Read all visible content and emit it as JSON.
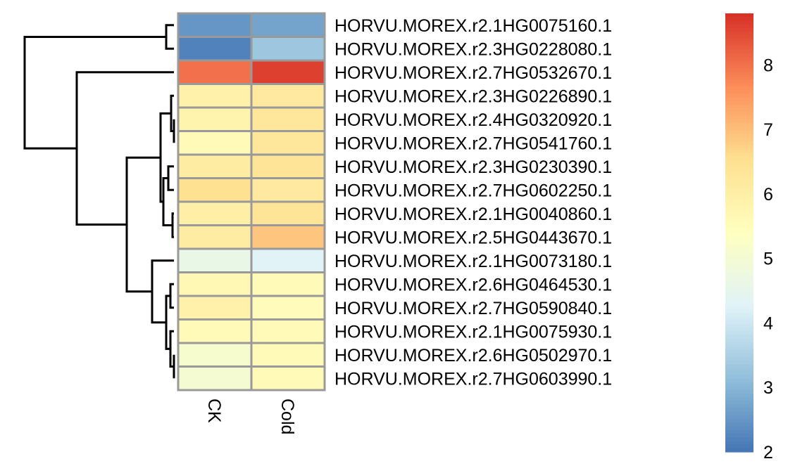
{
  "chart_data": {
    "type": "heatmap",
    "columns": [
      "CK",
      "Cold"
    ],
    "rows": [
      "HORVU.MOREX.r2.1HG0075160.1",
      "HORVU.MOREX.r2.3HG0228080.1",
      "HORVU.MOREX.r2.7HG0532670.1",
      "HORVU.MOREX.r2.3HG0226890.1",
      "HORVU.MOREX.r2.4HG0320920.1",
      "HORVU.MOREX.r2.7HG0541760.1",
      "HORVU.MOREX.r2.3HG0230390.1",
      "HORVU.MOREX.r2.7HG0602250.1",
      "HORVU.MOREX.r2.1HG0040860.1",
      "HORVU.MOREX.r2.5HG0443670.1",
      "HORVU.MOREX.r2.1HG0073180.1",
      "HORVU.MOREX.r2.6HG0464530.1",
      "HORVU.MOREX.r2.7HG0590840.1",
      "HORVU.MOREX.r2.1HG0075930.1",
      "HORVU.MOREX.r2.6HG0502970.1",
      "HORVU.MOREX.r2.7HG0603990.1"
    ],
    "values": [
      [
        2.5,
        2.7
      ],
      [
        2.2,
        3.3
      ],
      [
        8.0,
        8.6
      ],
      [
        5.9,
        6.2
      ],
      [
        5.8,
        6.3
      ],
      [
        5.6,
        6.3
      ],
      [
        6.1,
        6.4
      ],
      [
        6.5,
        6.2
      ],
      [
        6.0,
        6.4
      ],
      [
        6.1,
        6.9
      ],
      [
        4.6,
        4.3
      ],
      [
        5.7,
        5.6
      ],
      [
        5.9,
        5.5
      ],
      [
        5.6,
        5.6
      ],
      [
        5.1,
        5.6
      ],
      [
        5.0,
        5.6
      ]
    ],
    "color_scale": {
      "min": 2,
      "max": 8.8,
      "low_color": "#4575b4",
      "mid_color": "#ffffbf",
      "high_color": "#d73027",
      "ticks": [
        2,
        3,
        4,
        5,
        6,
        7,
        8
      ]
    },
    "row_dendrogram": true,
    "cell_border_color": "#999999"
  }
}
